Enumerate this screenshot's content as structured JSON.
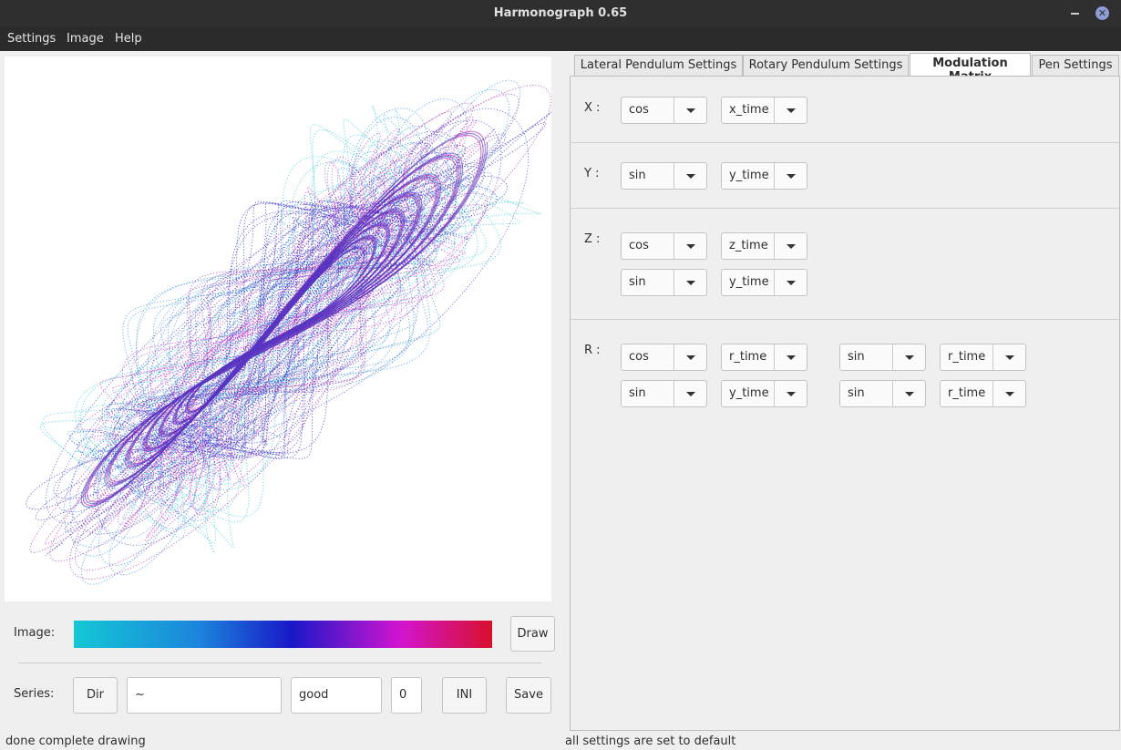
{
  "window": {
    "title": "Harmonograph 0.65"
  },
  "menu": [
    "Settings",
    "Image",
    "Help"
  ],
  "left": {
    "image_label": "Image:",
    "draw_label": "Draw",
    "series_label": "Series:",
    "dir_label": "Dir",
    "path_value": "~",
    "name_value": "good",
    "index_value": "0",
    "ini_label": "INI",
    "save_label": "Save",
    "gradient_colors": [
      "#14c7d6",
      "#1c84dc",
      "#1818c8",
      "#d214d0",
      "#d8102c"
    ]
  },
  "tabs": [
    "Lateral Pendulum Settings",
    "Rotary Pendulum Settings",
    "Modulation Matrix",
    "Pen Settings"
  ],
  "active_tab": "Modulation Matrix",
  "matrix": {
    "x": {
      "label": "X :",
      "rows": [
        [
          "cos",
          "x_time"
        ]
      ]
    },
    "y": {
      "label": "Y :",
      "rows": [
        [
          "sin",
          "y_time"
        ]
      ]
    },
    "z": {
      "label": "Z :",
      "rows": [
        [
          "cos",
          "z_time"
        ],
        [
          "sin",
          "y_time"
        ]
      ]
    },
    "r": {
      "label": "R :",
      "rows": [
        [
          "cos",
          "r_time",
          "sin",
          "r_time"
        ],
        [
          "sin",
          "y_time",
          "sin",
          "r_time"
        ]
      ]
    }
  },
  "status": {
    "left": "done complete drawing",
    "right": "all settings are set to default"
  }
}
